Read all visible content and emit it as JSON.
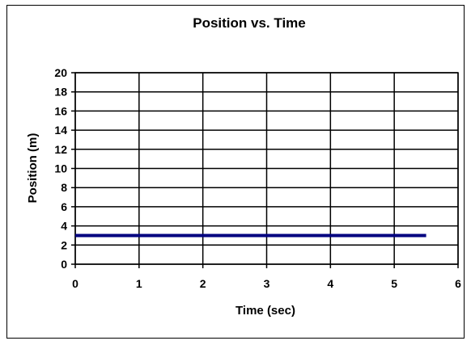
{
  "chart_data": {
    "type": "line",
    "title": "Position vs. Time",
    "xlabel": "Time (sec)",
    "ylabel": "Position (m)",
    "xlim": [
      0,
      6
    ],
    "ylim": [
      0,
      20
    ],
    "x_ticks": [
      "0",
      "1",
      "2",
      "3",
      "4",
      "5",
      "6"
    ],
    "y_ticks": [
      "0",
      "2",
      "4",
      "6",
      "8",
      "10",
      "12",
      "14",
      "16",
      "18",
      "20"
    ],
    "grid": true,
    "series": [
      {
        "color": "#000080",
        "x": [
          0,
          5.5
        ],
        "y": [
          3,
          3
        ]
      }
    ]
  }
}
